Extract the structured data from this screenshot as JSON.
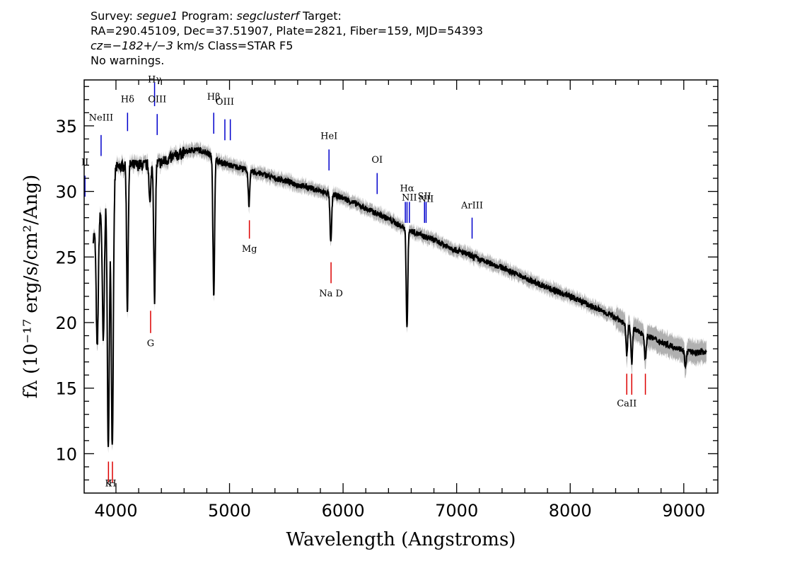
{
  "header": {
    "line1_prefix": "Survey: ",
    "survey": "segue1",
    "program_prefix": " Program: ",
    "program": "segclusterf",
    "target_suffix": " Target:",
    "line2": "RA=290.45109, Dec=37.51907, Plate=2821, Fiber=159, MJD=54393",
    "cz": "cz=−182+/−3",
    "line3_suffix": " km/s Class=STAR F5",
    "line4": "No warnings."
  },
  "chart_data": {
    "type": "line",
    "xlabel": "Wavelength (Angstroms)",
    "ylabel": "fλ (10⁻¹⁷ erg/s/cm²/Ang)",
    "xlim": [
      3720,
      9300
    ],
    "ylim": [
      7,
      38.5
    ],
    "xticks": [
      4000,
      5000,
      6000,
      7000,
      8000,
      9000
    ],
    "yticks": [
      10,
      15,
      20,
      25,
      30,
      35
    ],
    "colors": {
      "spectrum": "#000000",
      "error": "#b0b0b0",
      "emission": "#0000cc",
      "absorption": "#dd0000"
    },
    "continuum": [
      {
        "x": 3800,
        "y": 26.5
      },
      {
        "x": 3850,
        "y": 28.0
      },
      {
        "x": 3920,
        "y": 30.0
      },
      {
        "x": 4000,
        "y": 31.8
      },
      {
        "x": 4100,
        "y": 32.0
      },
      {
        "x": 4200,
        "y": 32.0
      },
      {
        "x": 4300,
        "y": 32.0
      },
      {
        "x": 4400,
        "y": 32.2
      },
      {
        "x": 4500,
        "y": 32.6
      },
      {
        "x": 4600,
        "y": 33.0
      },
      {
        "x": 4700,
        "y": 33.2
      },
      {
        "x": 4800,
        "y": 33.0
      },
      {
        "x": 4900,
        "y": 32.3
      },
      {
        "x": 5000,
        "y": 32.0
      },
      {
        "x": 5100,
        "y": 31.8
      },
      {
        "x": 5200,
        "y": 31.5
      },
      {
        "x": 5300,
        "y": 31.3
      },
      {
        "x": 5400,
        "y": 31.0
      },
      {
        "x": 5500,
        "y": 30.8
      },
      {
        "x": 5600,
        "y": 30.5
      },
      {
        "x": 5700,
        "y": 30.3
      },
      {
        "x": 5800,
        "y": 30.0
      },
      {
        "x": 5900,
        "y": 29.8
      },
      {
        "x": 6000,
        "y": 29.5
      },
      {
        "x": 6100,
        "y": 29.1
      },
      {
        "x": 6200,
        "y": 28.7
      },
      {
        "x": 6300,
        "y": 28.3
      },
      {
        "x": 6400,
        "y": 27.9
      },
      {
        "x": 6500,
        "y": 27.4
      },
      {
        "x": 6600,
        "y": 27.0
      },
      {
        "x": 6700,
        "y": 26.6
      },
      {
        "x": 6800,
        "y": 26.3
      },
      {
        "x": 6900,
        "y": 25.9
      },
      {
        "x": 7000,
        "y": 25.5
      },
      {
        "x": 7100,
        "y": 25.2
      },
      {
        "x": 7200,
        "y": 24.8
      },
      {
        "x": 7300,
        "y": 24.5
      },
      {
        "x": 7400,
        "y": 24.2
      },
      {
        "x": 7500,
        "y": 23.8
      },
      {
        "x": 7600,
        "y": 23.4
      },
      {
        "x": 7700,
        "y": 23.0
      },
      {
        "x": 7800,
        "y": 22.7
      },
      {
        "x": 7900,
        "y": 22.3
      },
      {
        "x": 8000,
        "y": 22.0
      },
      {
        "x": 8100,
        "y": 21.6
      },
      {
        "x": 8200,
        "y": 21.2
      },
      {
        "x": 8300,
        "y": 20.8
      },
      {
        "x": 8400,
        "y": 20.4
      },
      {
        "x": 8500,
        "y": 19.8
      },
      {
        "x": 8600,
        "y": 19.3
      },
      {
        "x": 8700,
        "y": 18.9
      },
      {
        "x": 8800,
        "y": 18.5
      },
      {
        "x": 8900,
        "y": 18.2
      },
      {
        "x": 9000,
        "y": 17.9
      },
      {
        "x": 9100,
        "y": 17.7
      },
      {
        "x": 9200,
        "y": 17.8
      }
    ],
    "absorption_features": [
      {
        "x": 3835,
        "y": 18.0
      },
      {
        "x": 3889,
        "y": 18.5
      },
      {
        "x": 3933,
        "y": 10.4
      },
      {
        "x": 3968,
        "y": 10.5
      },
      {
        "x": 4101,
        "y": 21.0
      },
      {
        "x": 4300,
        "y": 29.0
      },
      {
        "x": 4340,
        "y": 21.5
      },
      {
        "x": 4861,
        "y": 22.0
      },
      {
        "x": 5172,
        "y": 29.0
      },
      {
        "x": 5892,
        "y": 26.0
      },
      {
        "x": 6563,
        "y": 19.6
      },
      {
        "x": 8498,
        "y": 17.5
      },
      {
        "x": 8542,
        "y": 17.0
      },
      {
        "x": 8662,
        "y": 17.1
      },
      {
        "x": 9015,
        "y": 16.5
      }
    ],
    "emission_lines": [
      {
        "label": "NeIII",
        "x": 3869,
        "y1": 32.7,
        "y2": 34.3,
        "label_y": 35.4
      },
      {
        "label": "Hδ",
        "x": 4102,
        "y1": 34.6,
        "y2": 36.0,
        "label_y": 36.8
      },
      {
        "label": "Hγ",
        "x": 4340,
        "y1": 36.5,
        "y2": 38.3,
        "label_y": 38.3
      },
      {
        "label": "OIII",
        "x": 4363,
        "y1": 34.3,
        "y2": 35.9,
        "label_y": 36.8
      },
      {
        "label": "Hβ",
        "x": 4861,
        "y1": 34.4,
        "y2": 36.0,
        "label_y": 37.0
      },
      {
        "label": "OIII",
        "x": 4959,
        "y1": 33.9,
        "y2": 35.5,
        "label_y": 36.6
      },
      {
        "label": "",
        "x": 5007,
        "y1": 33.9,
        "y2": 35.5,
        "label_y": 0
      },
      {
        "label": "HeI",
        "x": 5876,
        "y1": 31.6,
        "y2": 33.2,
        "label_y": 34.0
      },
      {
        "label": "OI",
        "x": 6300,
        "y1": 29.8,
        "y2": 31.4,
        "label_y": 32.2
      },
      {
        "label": "Hα",
        "x": 6563,
        "y1": 27.6,
        "y2": 29.2,
        "label_y": 30.0
      },
      {
        "label": "NII",
        "x": 6584,
        "y1": 27.6,
        "y2": 29.2,
        "label_y": 29.3
      },
      {
        "label": "NII",
        "x": 6548,
        "y1": 27.6,
        "y2": 29.2,
        "label_y": 0
      },
      {
        "label": "SII",
        "x": 6717,
        "y1": 27.6,
        "y2": 29.2,
        "label_y": 29.4
      },
      {
        "label": "NII",
        "x": 6731,
        "y1": 27.6,
        "y2": 29.2,
        "label_y": 29.2
      },
      {
        "label": "ArIII",
        "x": 7136,
        "y1": 26.4,
        "y2": 28.0,
        "label_y": 28.7
      },
      {
        "label": "II",
        "x": 3727,
        "y1": 29.6,
        "y2": 31.2,
        "label_y": 32.0
      }
    ],
    "absorption_lines": [
      {
        "label": "K",
        "x": 3934,
        "y1": 7.8,
        "y2": 9.4,
        "label_y": 7.5
      },
      {
        "label": "H",
        "x": 3969,
        "y1": 7.8,
        "y2": 9.4,
        "label_y": 7.5
      },
      {
        "label": "G",
        "x": 4305,
        "y1": 19.2,
        "y2": 20.9,
        "label_y": 18.2
      },
      {
        "label": "Mg",
        "x": 5175,
        "y1": 26.4,
        "y2": 27.8,
        "label_y": 25.4
      },
      {
        "label": "Na D",
        "x": 5894,
        "y1": 23.0,
        "y2": 24.6,
        "label_y": 22.0
      },
      {
        "label": "CaII",
        "x": 8498,
        "y1": 14.5,
        "y2": 16.1,
        "label_y": 13.6
      },
      {
        "label": "",
        "x": 8542,
        "y1": 14.5,
        "y2": 16.1,
        "label_y": 0
      },
      {
        "label": "",
        "x": 8662,
        "y1": 14.5,
        "y2": 16.1,
        "label_y": 0
      }
    ]
  }
}
